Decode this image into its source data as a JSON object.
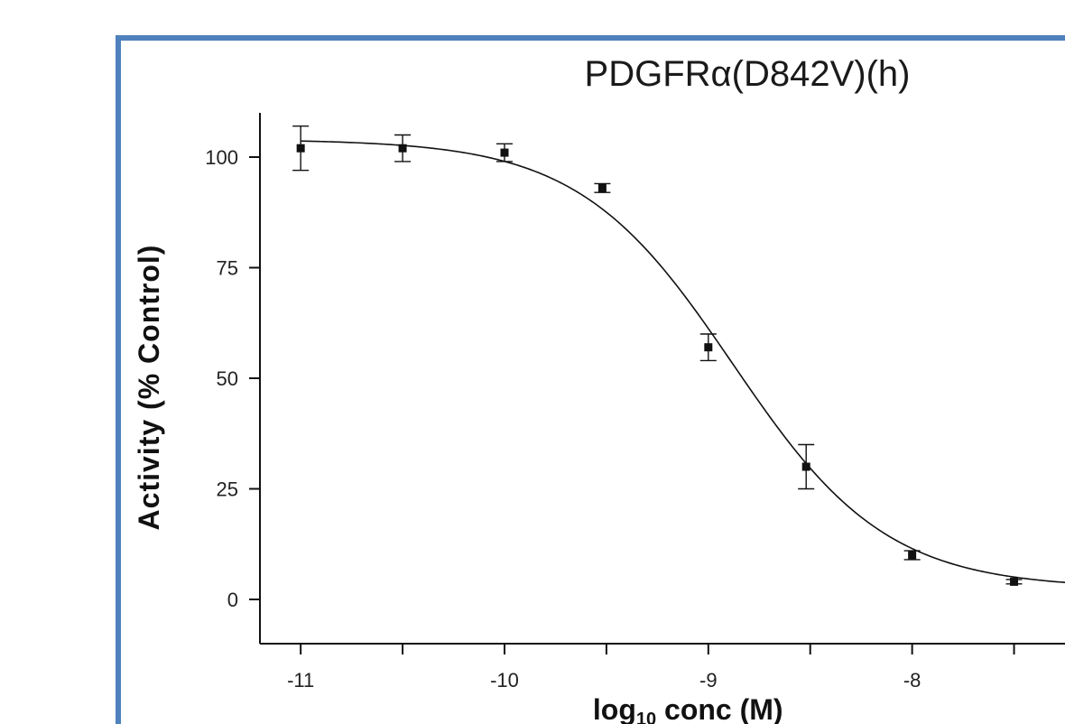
{
  "colors": {
    "frame_border": "#4f81bd",
    "curve": "#111111",
    "points": "#111111"
  },
  "chart_data": {
    "type": "scatter",
    "title": "PDGFRα(D842V)(h)",
    "xlabel": "log10 conc (M)",
    "xlabel_main": "log",
    "xlabel_sub": "10",
    "xlabel_rest": " conc (M)",
    "ylabel": "Activity (% Control)",
    "xlim": [
      -11.2,
      -7.25
    ],
    "ylim": [
      -10,
      110
    ],
    "x_ticks": [
      -11,
      -10.5,
      -10,
      -9.5,
      -9,
      -8.5,
      -8,
      -7.5
    ],
    "x_tick_labels": [
      "-11",
      "",
      "-10",
      "",
      "-9",
      "",
      "-8",
      ""
    ],
    "y_ticks": [
      0,
      25,
      50,
      75,
      100
    ],
    "y_tick_labels": [
      "0",
      "25",
      "50",
      "75",
      "100"
    ],
    "grid": false,
    "series": [
      {
        "x": [
          -11,
          -10.5,
          -10,
          -9.52,
          -9,
          -8.52,
          -8,
          -7.5
        ],
        "y": [
          102,
          102,
          101,
          93,
          57,
          30,
          10,
          4
        ],
        "error": [
          5,
          3,
          2,
          1,
          3,
          5,
          1,
          0.5
        ]
      }
    ],
    "fit": {
      "type": "four-parameter logistic",
      "top": 104,
      "bottom": 2.5,
      "log_ic50": -8.88,
      "hill_slope": 1.15
    }
  }
}
